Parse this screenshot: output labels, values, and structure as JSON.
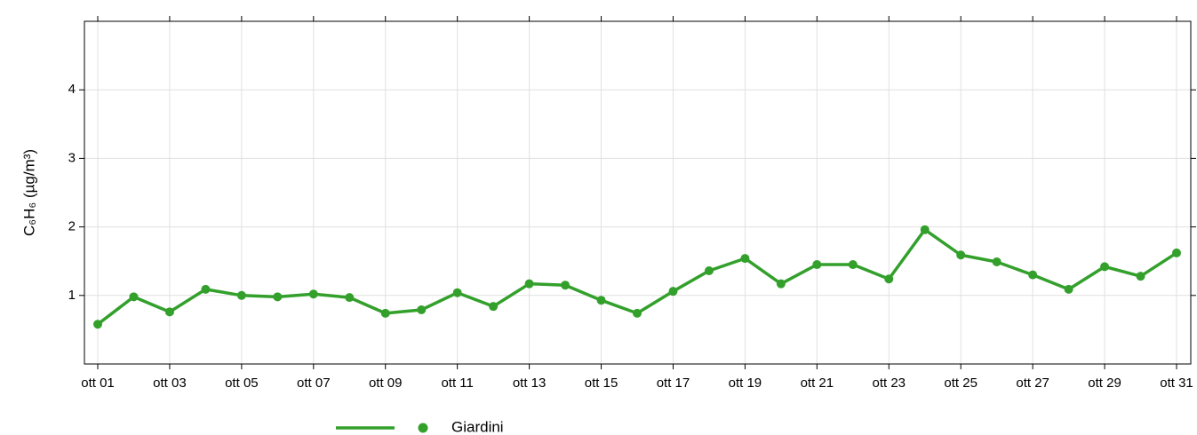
{
  "chart_data": {
    "type": "line",
    "y_label": "C₆H₆ (µg/m³)",
    "categories": [
      "ott 01",
      null,
      "ott 03",
      null,
      "ott 05",
      null,
      "ott 07",
      null,
      "ott 09",
      null,
      "ott 11",
      null,
      "ott 13",
      null,
      "ott 15",
      null,
      "ott 17",
      null,
      "ott 19",
      null,
      "ott 21",
      null,
      "ott 23",
      null,
      "ott 25",
      null,
      "ott 27",
      null,
      "ott 29",
      null,
      "ott 31"
    ],
    "series": [
      {
        "name": "Giardini",
        "color": "#33a02c",
        "values": [
          0.58,
          0.98,
          0.76,
          1.09,
          1.0,
          0.98,
          1.02,
          0.97,
          0.74,
          0.79,
          1.04,
          0.84,
          1.17,
          1.15,
          0.93,
          0.74,
          1.06,
          1.36,
          1.54,
          1.17,
          1.45,
          1.45,
          1.24,
          1.96,
          1.59,
          1.49,
          1.3,
          1.09,
          1.42,
          1.28,
          1.62
        ]
      }
    ],
    "ylim": [
      0,
      5
    ],
    "yticks": [
      1,
      2,
      3,
      4
    ],
    "grid": true
  }
}
